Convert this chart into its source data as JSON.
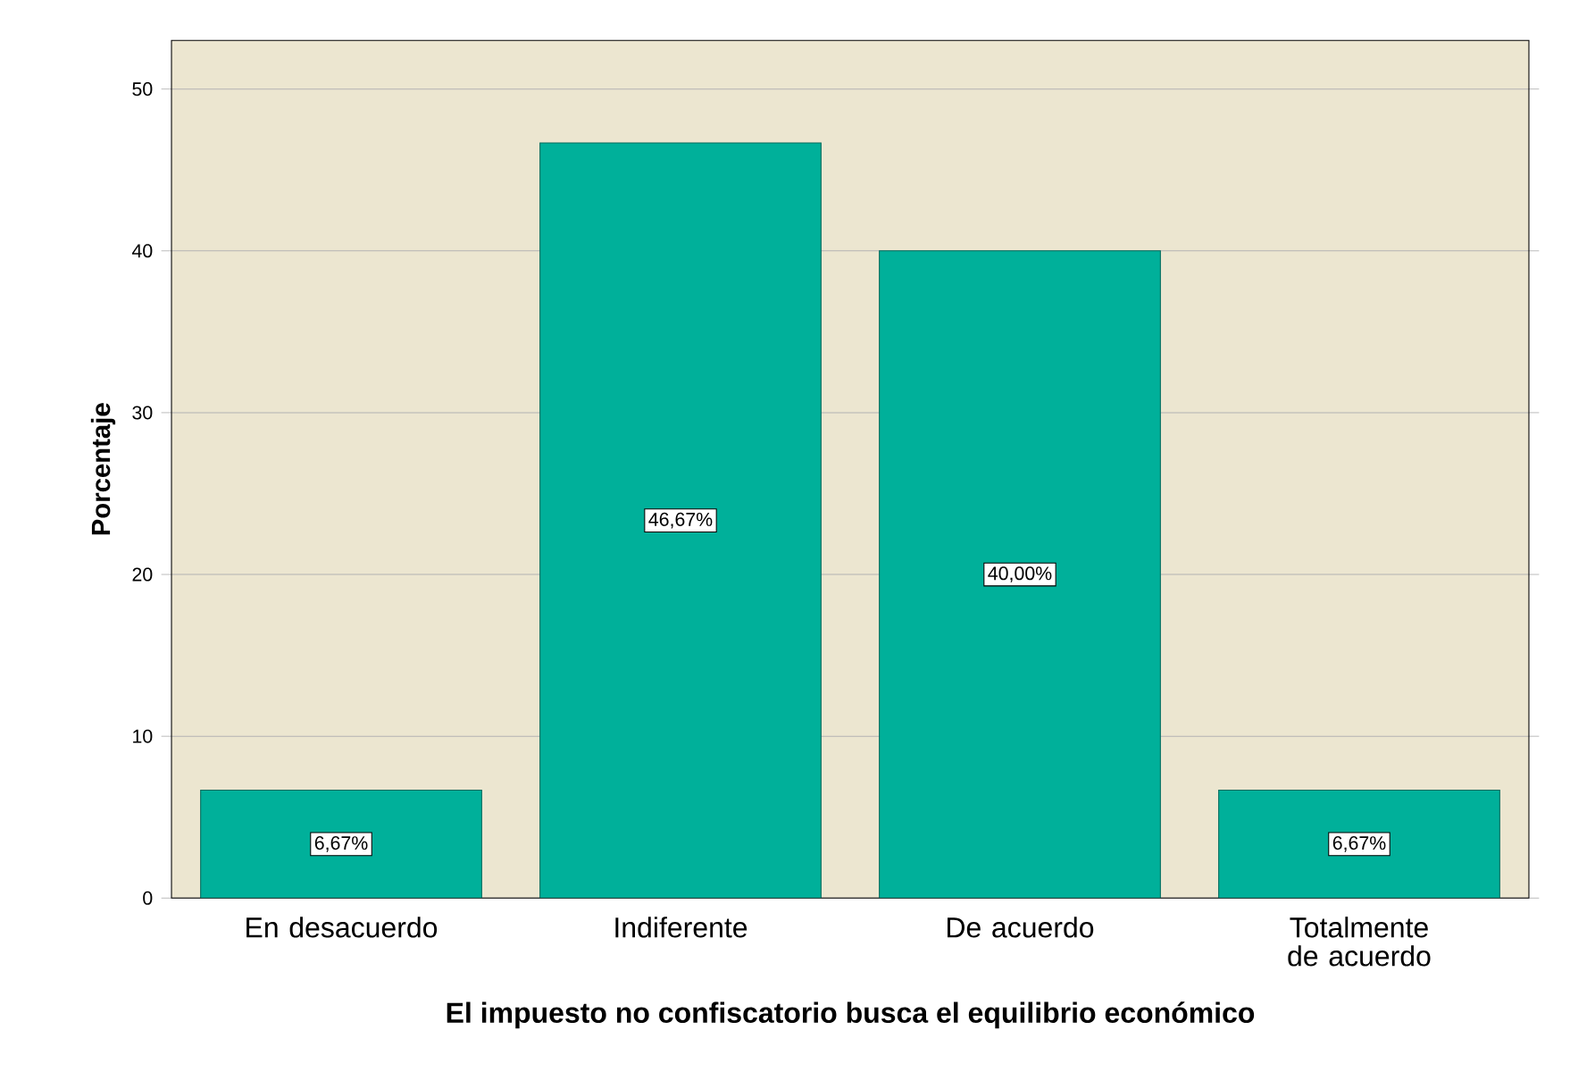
{
  "chart_data": {
    "type": "bar",
    "xlabel": "El impuesto no confiscatorio busca el equilibrio económico",
    "ylabel": "Porcentaje",
    "categories": [
      "En desacuerdo",
      "Indiferente",
      "De acuerdo",
      "Totalmente de acuerdo"
    ],
    "values": [
      6.67,
      46.67,
      40.0,
      6.67
    ],
    "value_labels": [
      "6,67%",
      "46,67%",
      "40,00%",
      "6,67%"
    ],
    "color": "#00b09a",
    "ylim": [
      0,
      53
    ],
    "yticks": [
      0,
      10,
      20,
      30,
      40,
      50
    ],
    "grid": "y"
  }
}
